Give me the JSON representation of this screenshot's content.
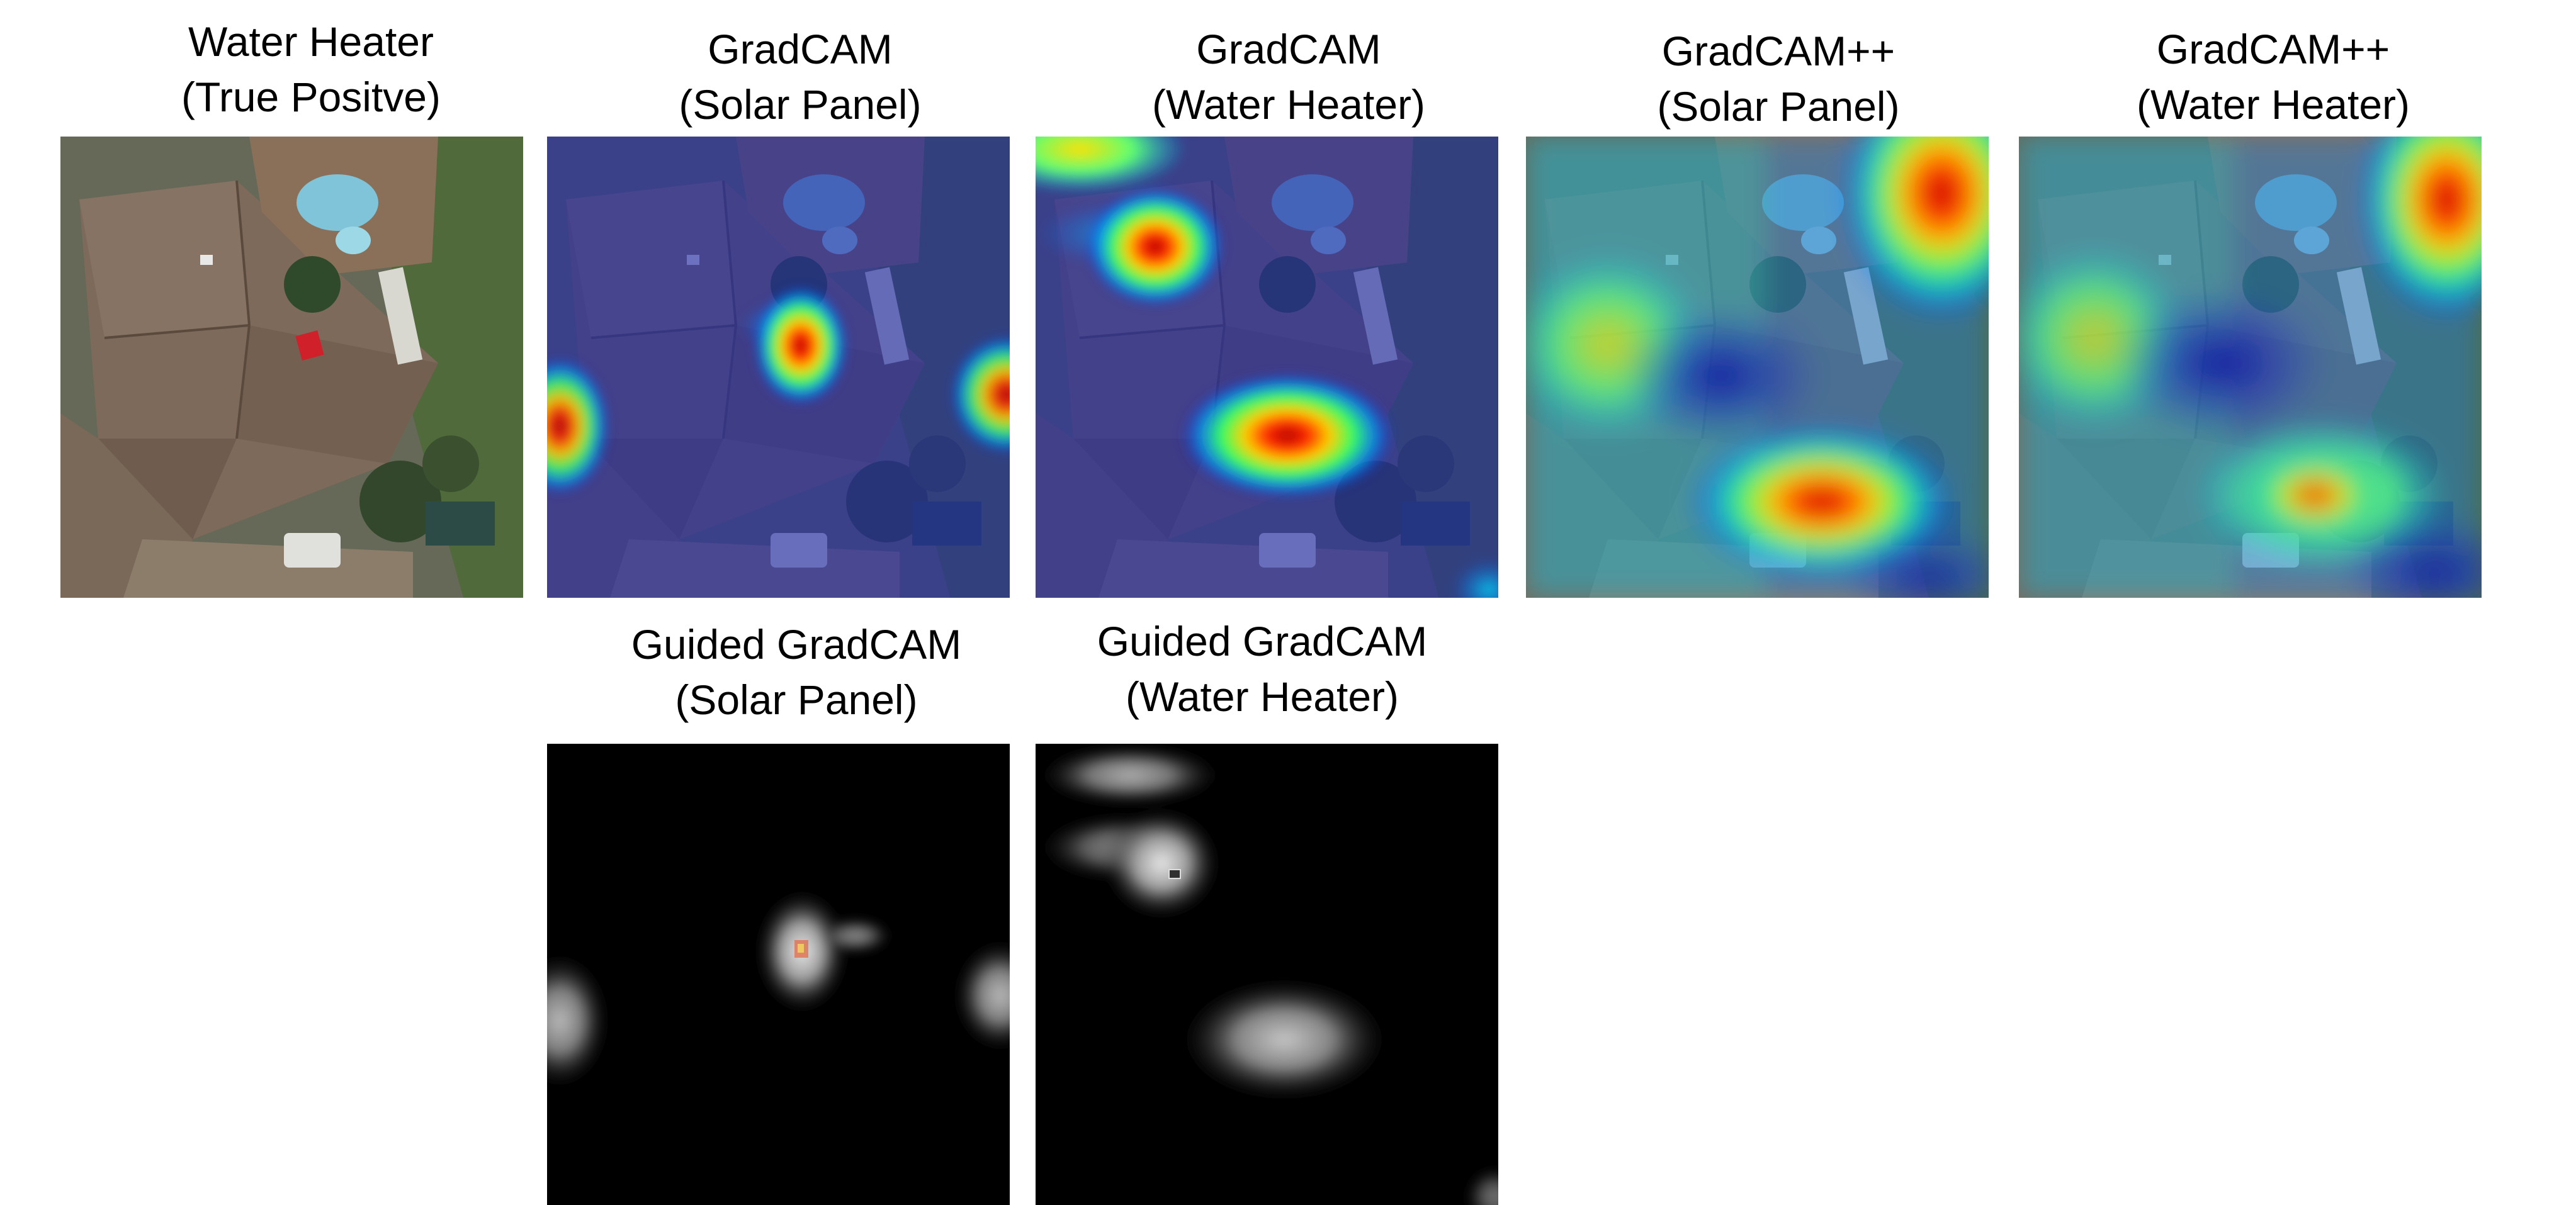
{
  "figure": {
    "panels": [
      {
        "id": "original",
        "title_line1": "Water Heater",
        "title_line2": "(True Positve)",
        "kind": "aerial"
      },
      {
        "id": "gradcam-solar",
        "title_line1": "GradCAM",
        "title_line2": "(Solar Panel)",
        "kind": "gradcam"
      },
      {
        "id": "gradcam-water",
        "title_line1": "GradCAM",
        "title_line2": "(Water Heater)",
        "kind": "gradcam"
      },
      {
        "id": "gradcampp-solar",
        "title_line1": "GradCAM++",
        "title_line2": "(Solar Panel)",
        "kind": "gradcampp"
      },
      {
        "id": "gradcampp-water",
        "title_line1": "GradCAM++",
        "title_line2": "(Water Heater)",
        "kind": "gradcampp"
      },
      {
        "id": "guided-solar",
        "title_line1": "Guided GradCAM",
        "title_line2": "(Solar Panel)",
        "kind": "guided"
      },
      {
        "id": "guided-water",
        "title_line1": "Guided GradCAM",
        "title_line2": "(Water Heater)",
        "kind": "guided"
      }
    ],
    "stray_glyph": ")"
  }
}
